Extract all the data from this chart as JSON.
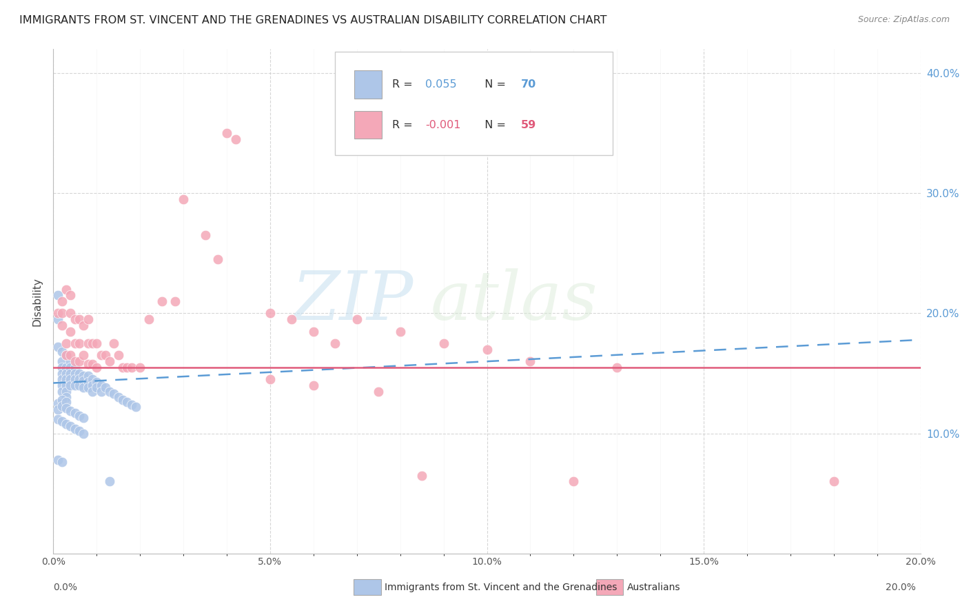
{
  "title": "IMMIGRANTS FROM ST. VINCENT AND THE GRENADINES VS AUSTRALIAN DISABILITY CORRELATION CHART",
  "source": "Source: ZipAtlas.com",
  "ylabel_label": "Disability",
  "xlim": [
    0.0,
    0.2
  ],
  "ylim": [
    0.0,
    0.42
  ],
  "xtick_labels": [
    "0.0%",
    "",
    "",
    "",
    "",
    "5.0%",
    "",
    "",
    "",
    "",
    "10.0%",
    "",
    "",
    "",
    "",
    "15.0%",
    "",
    "",
    "",
    "",
    "20.0%"
  ],
  "xtick_values": [
    0.0,
    0.01,
    0.02,
    0.03,
    0.04,
    0.05,
    0.06,
    0.07,
    0.08,
    0.09,
    0.1,
    0.11,
    0.12,
    0.13,
    0.14,
    0.15,
    0.16,
    0.17,
    0.18,
    0.19,
    0.2
  ],
  "xtick_major_labels": [
    "0.0%",
    "5.0%",
    "10.0%",
    "15.0%",
    "20.0%"
  ],
  "xtick_major_values": [
    0.0,
    0.05,
    0.1,
    0.15,
    0.2
  ],
  "ytick_labels": [
    "10.0%",
    "20.0%",
    "30.0%",
    "40.0%"
  ],
  "ytick_values": [
    0.1,
    0.2,
    0.3,
    0.4
  ],
  "blue_color": "#aec6e8",
  "pink_color": "#f4a8b8",
  "blue_line_color": "#5b9bd5",
  "pink_line_color": "#e05a7a",
  "legend_R_blue": "0.055",
  "legend_N_blue": "70",
  "legend_R_pink": "-0.001",
  "legend_N_pink": "59",
  "watermark_zip": "ZIP",
  "watermark_atlas": "atlas",
  "blue_regression": [
    0.0,
    0.2,
    0.142,
    0.178
  ],
  "pink_regression": [
    0.0,
    0.2,
    0.155,
    0.155
  ],
  "blue_x": [
    0.001,
    0.001,
    0.001,
    0.002,
    0.002,
    0.002,
    0.002,
    0.002,
    0.002,
    0.002,
    0.003,
    0.003,
    0.003,
    0.003,
    0.003,
    0.003,
    0.003,
    0.004,
    0.004,
    0.004,
    0.004,
    0.004,
    0.005,
    0.005,
    0.005,
    0.005,
    0.006,
    0.006,
    0.006,
    0.007,
    0.007,
    0.007,
    0.008,
    0.008,
    0.008,
    0.009,
    0.009,
    0.009,
    0.01,
    0.01,
    0.011,
    0.011,
    0.012,
    0.013,
    0.014,
    0.015,
    0.016,
    0.017,
    0.018,
    0.019,
    0.001,
    0.001,
    0.002,
    0.002,
    0.003,
    0.003,
    0.004,
    0.005,
    0.006,
    0.007,
    0.001,
    0.002,
    0.003,
    0.004,
    0.005,
    0.006,
    0.007,
    0.001,
    0.002,
    0.013
  ],
  "blue_y": [
    0.215,
    0.195,
    0.172,
    0.168,
    0.16,
    0.155,
    0.15,
    0.145,
    0.14,
    0.135,
    0.165,
    0.155,
    0.15,
    0.145,
    0.14,
    0.135,
    0.13,
    0.16,
    0.155,
    0.15,
    0.145,
    0.14,
    0.155,
    0.15,
    0.145,
    0.14,
    0.15,
    0.145,
    0.14,
    0.148,
    0.144,
    0.138,
    0.148,
    0.143,
    0.138,
    0.145,
    0.14,
    0.135,
    0.143,
    0.138,
    0.14,
    0.135,
    0.138,
    0.135,
    0.133,
    0.13,
    0.128,
    0.126,
    0.124,
    0.122,
    0.125,
    0.12,
    0.128,
    0.123,
    0.126,
    0.121,
    0.119,
    0.117,
    0.115,
    0.113,
    0.112,
    0.11,
    0.108,
    0.106,
    0.104,
    0.102,
    0.1,
    0.078,
    0.076,
    0.06
  ],
  "pink_x": [
    0.001,
    0.002,
    0.002,
    0.002,
    0.003,
    0.003,
    0.003,
    0.004,
    0.004,
    0.004,
    0.004,
    0.005,
    0.005,
    0.005,
    0.006,
    0.006,
    0.006,
    0.007,
    0.007,
    0.008,
    0.008,
    0.008,
    0.009,
    0.009,
    0.01,
    0.01,
    0.011,
    0.012,
    0.013,
    0.014,
    0.015,
    0.016,
    0.017,
    0.018,
    0.02,
    0.022,
    0.025,
    0.028,
    0.03,
    0.035,
    0.038,
    0.04,
    0.042,
    0.05,
    0.055,
    0.06,
    0.065,
    0.07,
    0.08,
    0.09,
    0.1,
    0.11,
    0.12,
    0.13,
    0.05,
    0.06,
    0.075,
    0.085,
    0.18
  ],
  "pink_y": [
    0.2,
    0.21,
    0.2,
    0.19,
    0.22,
    0.175,
    0.165,
    0.215,
    0.2,
    0.185,
    0.165,
    0.195,
    0.175,
    0.16,
    0.195,
    0.175,
    0.16,
    0.19,
    0.165,
    0.195,
    0.175,
    0.158,
    0.175,
    0.158,
    0.175,
    0.155,
    0.165,
    0.165,
    0.16,
    0.175,
    0.165,
    0.155,
    0.155,
    0.155,
    0.155,
    0.195,
    0.21,
    0.21,
    0.295,
    0.265,
    0.245,
    0.35,
    0.345,
    0.2,
    0.195,
    0.185,
    0.175,
    0.195,
    0.185,
    0.175,
    0.17,
    0.16,
    0.06,
    0.155,
    0.145,
    0.14,
    0.135,
    0.065,
    0.06
  ]
}
